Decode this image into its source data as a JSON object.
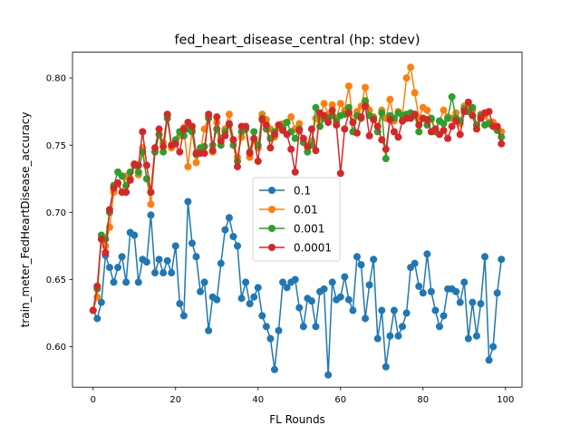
{
  "chart_data": {
    "type": "line",
    "title": "fed_heart_disease_central (hp: stdev)",
    "xlabel": "FL Rounds",
    "ylabel": "train_meter_FedHeartDisease_accuracy",
    "xlim": [
      -5,
      104
    ],
    "ylim": [
      0.5699,
      0.8192
    ],
    "xticks": [
      0,
      20,
      40,
      60,
      80,
      100
    ],
    "yticks": [
      0.6,
      0.65,
      0.7,
      0.75,
      0.8
    ],
    "xtick_labels": [
      "0",
      "20",
      "40",
      "60",
      "80",
      "100"
    ],
    "ytick_labels": [
      "0.60",
      "0.65",
      "0.70",
      "0.75",
      "0.80"
    ],
    "grid": false,
    "legend_position": "center",
    "x": [
      0,
      1,
      2,
      3,
      4,
      5,
      6,
      7,
      8,
      9,
      10,
      11,
      12,
      13,
      14,
      15,
      16,
      17,
      18,
      19,
      20,
      21,
      22,
      23,
      24,
      25,
      26,
      27,
      28,
      29,
      30,
      31,
      32,
      33,
      34,
      35,
      36,
      37,
      38,
      39,
      40,
      41,
      42,
      43,
      44,
      45,
      46,
      47,
      48,
      49,
      50,
      51,
      52,
      53,
      54,
      55,
      56,
      57,
      58,
      59,
      60,
      61,
      62,
      63,
      64,
      65,
      66,
      67,
      68,
      69,
      70,
      71,
      72,
      73,
      74,
      75,
      76,
      77,
      78,
      79,
      80,
      81,
      82,
      83,
      84,
      85,
      86,
      87,
      88,
      89,
      90,
      91,
      92,
      93,
      94,
      95,
      96,
      97,
      98,
      99
    ],
    "series": [
      {
        "name": "0.1",
        "color": "#1f77b4",
        "values": [
          0.627,
          0.621,
          0.633,
          0.668,
          0.659,
          0.648,
          0.659,
          0.667,
          0.648,
          0.685,
          0.683,
          0.648,
          0.665,
          0.663,
          0.698,
          0.655,
          0.665,
          0.655,
          0.664,
          0.655,
          0.675,
          0.632,
          0.623,
          0.708,
          0.677,
          0.667,
          0.641,
          0.648,
          0.612,
          0.637,
          0.635,
          0.662,
          0.687,
          0.696,
          0.682,
          0.675,
          0.636,
          0.648,
          0.632,
          0.637,
          0.644,
          0.623,
          0.615,
          0.606,
          0.583,
          0.612,
          0.648,
          0.644,
          0.648,
          0.65,
          0.629,
          0.615,
          0.636,
          0.634,
          0.615,
          0.641,
          0.643,
          0.579,
          0.648,
          0.635,
          0.637,
          0.652,
          0.635,
          0.627,
          0.667,
          0.661,
          0.621,
          0.646,
          0.665,
          0.606,
          0.627,
          0.585,
          0.608,
          0.627,
          0.608,
          0.615,
          0.625,
          0.659,
          0.662,
          0.645,
          0.64,
          0.669,
          0.641,
          0.627,
          0.615,
          0.623,
          0.643,
          0.643,
          0.641,
          0.633,
          0.648,
          0.606,
          0.633,
          0.608,
          0.632,
          0.667,
          0.59,
          0.6,
          0.64,
          0.665
        ]
      },
      {
        "name": "0.01",
        "color": "#ff7f0e",
        "values": [
          0.627,
          0.637,
          0.683,
          0.675,
          0.689,
          0.715,
          0.721,
          0.715,
          0.727,
          0.725,
          0.735,
          0.728,
          0.748,
          0.725,
          0.706,
          0.745,
          0.758,
          0.752,
          0.772,
          0.748,
          0.752,
          0.757,
          0.763,
          0.734,
          0.761,
          0.737,
          0.746,
          0.762,
          0.771,
          0.745,
          0.767,
          0.755,
          0.762,
          0.773,
          0.754,
          0.741,
          0.756,
          0.762,
          0.741,
          0.754,
          0.748,
          0.773,
          0.769,
          0.762,
          0.756,
          0.763,
          0.766,
          0.767,
          0.771,
          0.762,
          0.766,
          0.752,
          0.748,
          0.753,
          0.77,
          0.768,
          0.781,
          0.773,
          0.78,
          0.77,
          0.781,
          0.776,
          0.794,
          0.767,
          0.775,
          0.779,
          0.793,
          0.776,
          0.771,
          0.764,
          0.776,
          0.77,
          0.784,
          0.768,
          0.775,
          0.772,
          0.8,
          0.808,
          0.789,
          0.77,
          0.778,
          0.776,
          0.769,
          0.762,
          0.768,
          0.776,
          0.771,
          0.77,
          0.774,
          0.766,
          0.779,
          0.777,
          0.776,
          0.765,
          0.773,
          0.772,
          0.767,
          0.767,
          0.763,
          0.76
        ]
      },
      {
        "name": "0.001",
        "color": "#2ca02c",
        "values": [
          0.627,
          0.643,
          0.683,
          0.68,
          0.7,
          0.72,
          0.73,
          0.727,
          0.72,
          0.73,
          0.735,
          0.73,
          0.745,
          0.725,
          0.715,
          0.745,
          0.758,
          0.745,
          0.77,
          0.75,
          0.754,
          0.76,
          0.757,
          0.762,
          0.76,
          0.743,
          0.748,
          0.749,
          0.77,
          0.75,
          0.762,
          0.75,
          0.76,
          0.765,
          0.75,
          0.738,
          0.76,
          0.762,
          0.745,
          0.76,
          0.75,
          0.77,
          0.762,
          0.755,
          0.76,
          0.765,
          0.763,
          0.767,
          0.76,
          0.755,
          0.762,
          0.752,
          0.745,
          0.75,
          0.778,
          0.764,
          0.77,
          0.77,
          0.772,
          0.768,
          0.772,
          0.773,
          0.778,
          0.76,
          0.772,
          0.77,
          0.783,
          0.772,
          0.77,
          0.76,
          0.774,
          0.74,
          0.772,
          0.77,
          0.774,
          0.772,
          0.773,
          0.774,
          0.772,
          0.76,
          0.77,
          0.765,
          0.77,
          0.76,
          0.768,
          0.766,
          0.77,
          0.786,
          0.77,
          0.768,
          0.777,
          0.775,
          0.778,
          0.765,
          0.772,
          0.765,
          0.766,
          0.764,
          0.761,
          0.756
        ]
      },
      {
        "name": "0.0001",
        "color": "#d62728",
        "values": [
          0.627,
          0.645,
          0.68,
          0.67,
          0.702,
          0.718,
          0.722,
          0.715,
          0.715,
          0.724,
          0.736,
          0.735,
          0.76,
          0.735,
          0.715,
          0.748,
          0.762,
          0.749,
          0.773,
          0.75,
          0.751,
          0.745,
          0.762,
          0.767,
          0.764,
          0.744,
          0.744,
          0.744,
          0.773,
          0.746,
          0.771,
          0.753,
          0.757,
          0.766,
          0.754,
          0.734,
          0.764,
          0.764,
          0.744,
          0.755,
          0.738,
          0.769,
          0.765,
          0.748,
          0.758,
          0.765,
          0.761,
          0.758,
          0.747,
          0.73,
          0.761,
          0.755,
          0.749,
          0.762,
          0.746,
          0.774,
          0.772,
          0.767,
          0.776,
          0.765,
          0.729,
          0.762,
          0.774,
          0.767,
          0.759,
          0.771,
          0.779,
          0.757,
          0.769,
          0.764,
          0.754,
          0.747,
          0.769,
          0.76,
          0.756,
          0.768,
          0.77,
          0.77,
          0.773,
          0.765,
          0.77,
          0.769,
          0.76,
          0.762,
          0.758,
          0.761,
          0.755,
          0.764,
          0.768,
          0.758,
          0.775,
          0.782,
          0.772,
          0.762,
          0.77,
          0.774,
          0.775,
          0.764,
          0.764,
          0.751
        ]
      }
    ]
  }
}
